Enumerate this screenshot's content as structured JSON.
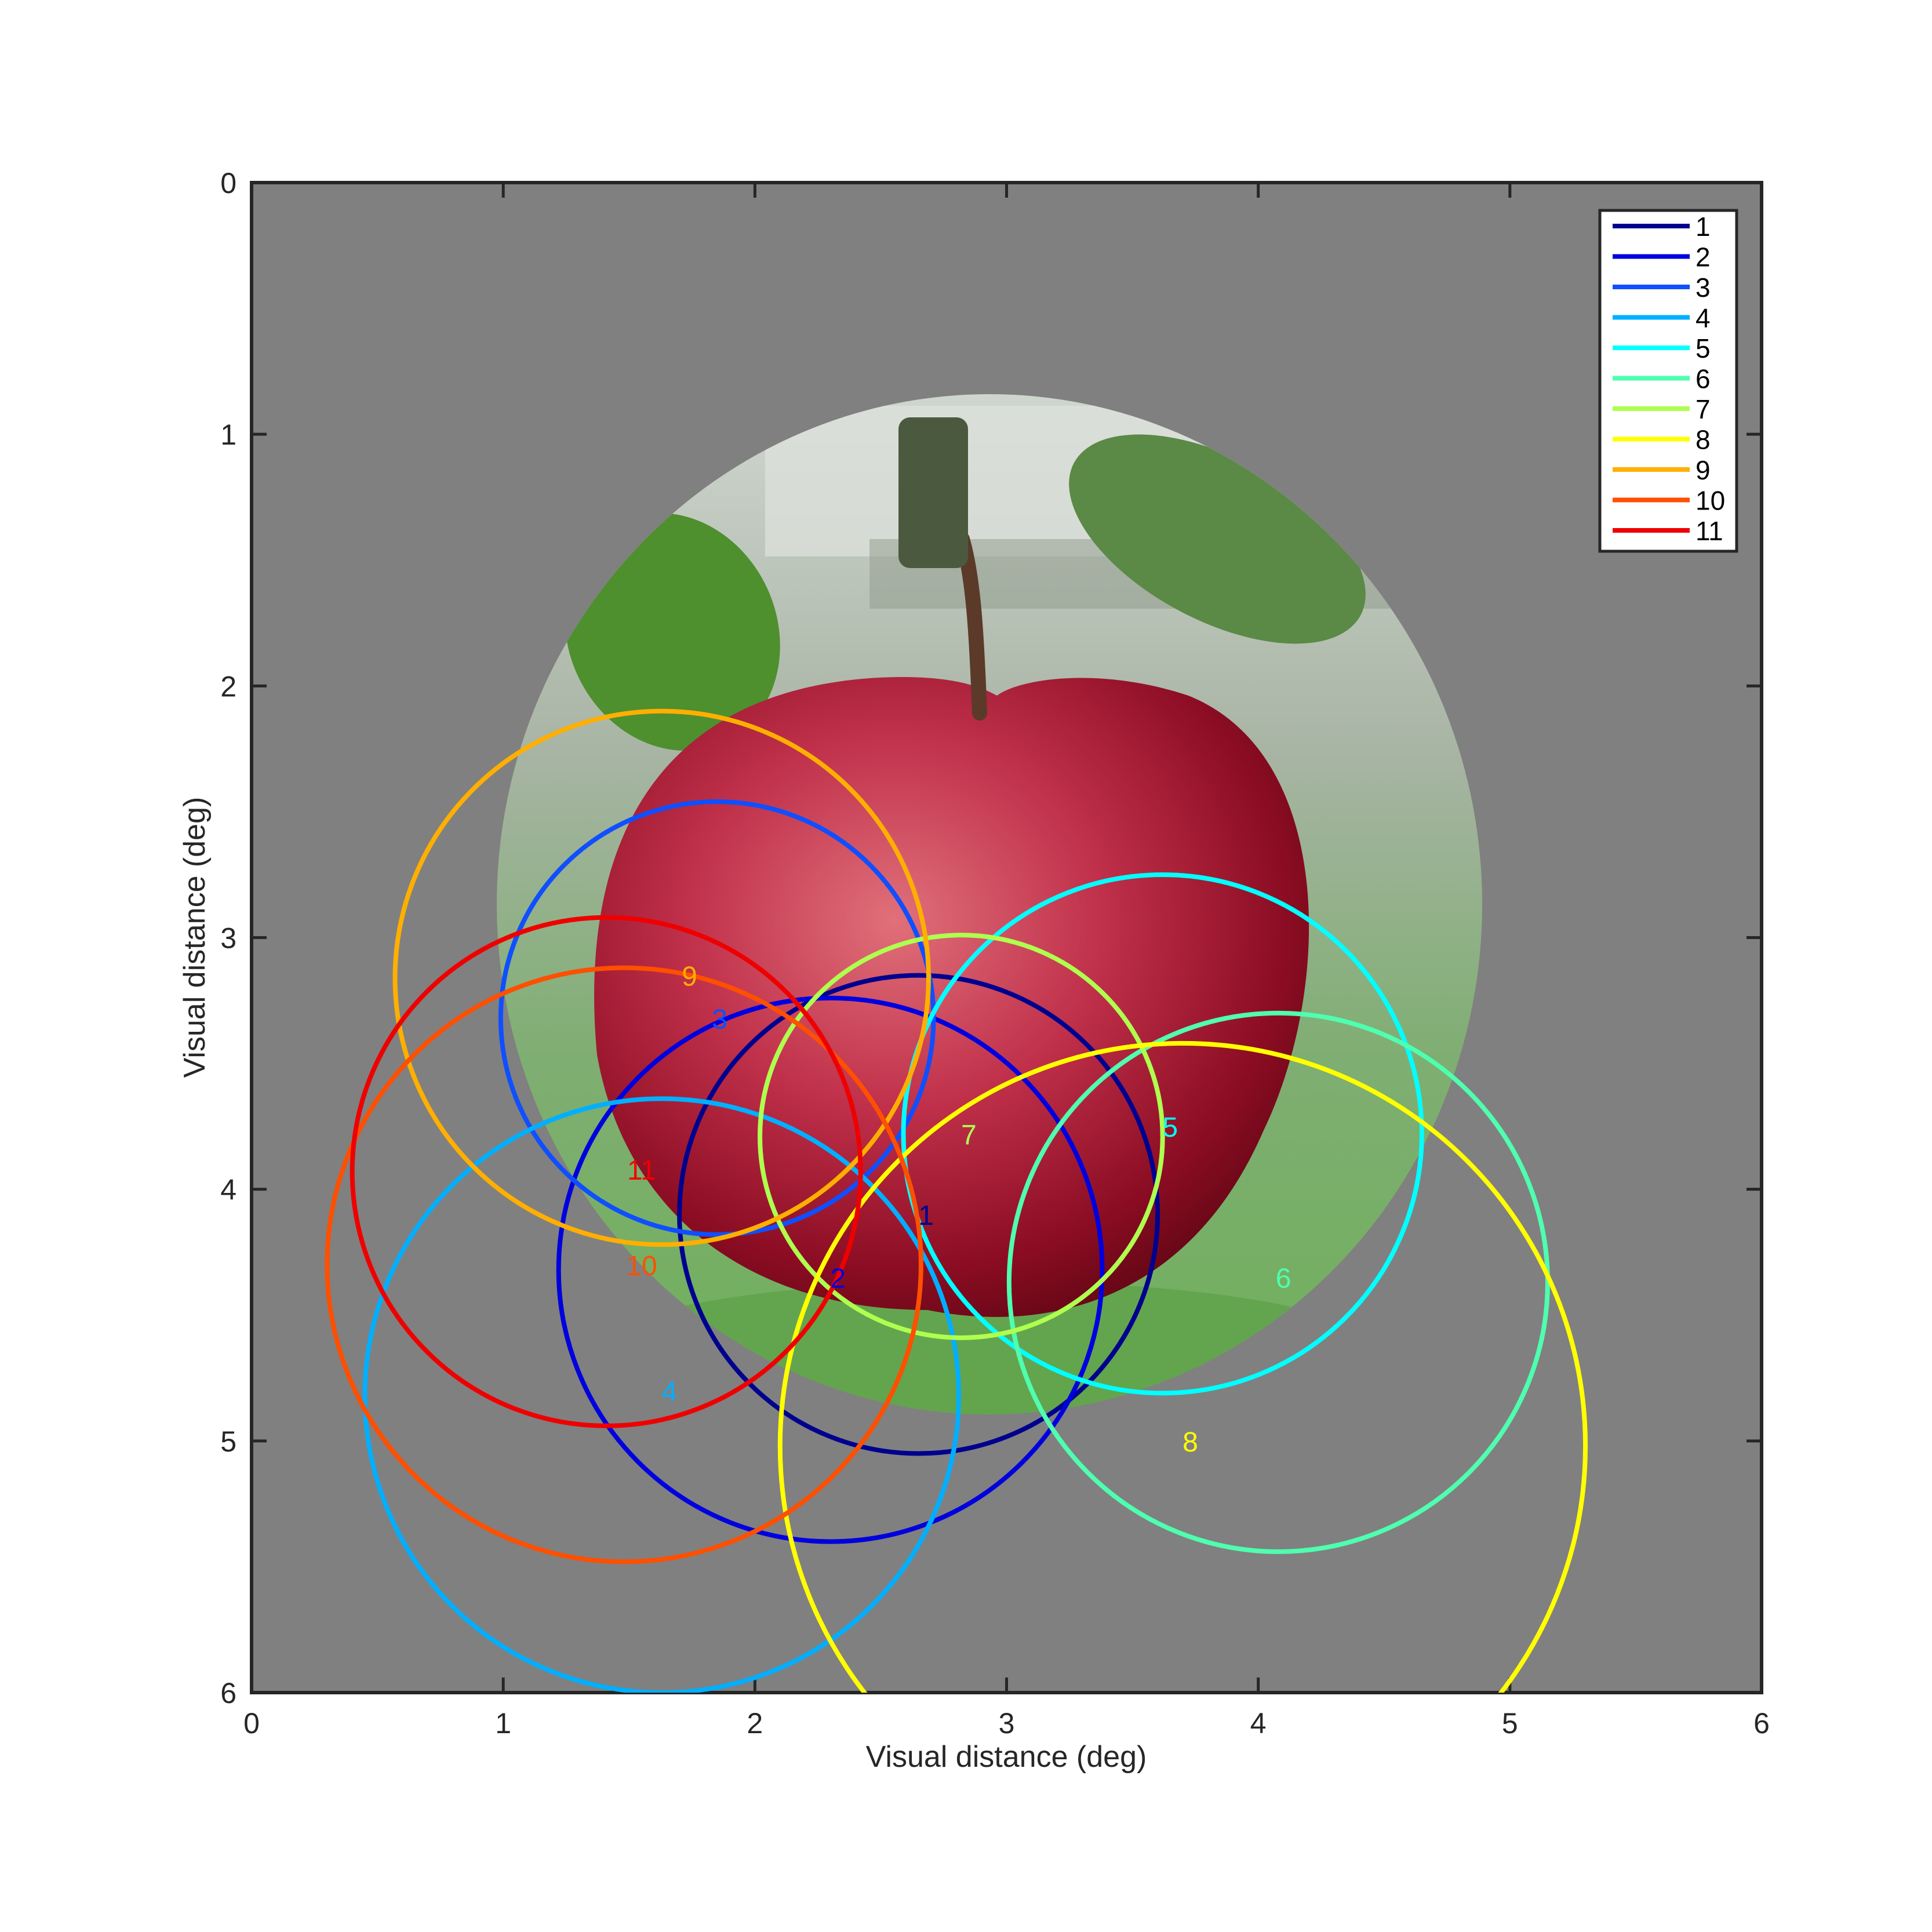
{
  "chart_data": {
    "type": "scatter",
    "title": "",
    "xlabel": "Visual distance (deg)",
    "ylabel": "Visual distance (deg)",
    "xlim": [
      0,
      6
    ],
    "ylim": [
      0,
      6
    ],
    "y_reversed": true,
    "x_ticks": [
      "0",
      "1",
      "2",
      "3",
      "4",
      "5",
      "6"
    ],
    "y_ticks": [
      "0",
      "1",
      "2",
      "3",
      "4",
      "5",
      "6"
    ],
    "grid": false,
    "legend_position": "top-right",
    "background_color": "#808080",
    "image": "apple-photo",
    "series": [
      {
        "name": "1",
        "label": "1",
        "color": "#00008f",
        "cx": 2.65,
        "cy": 4.1,
        "r": 0.95,
        "label_x": 2.68,
        "label_y": 4.1
      },
      {
        "name": "2",
        "label": "2",
        "color": "#0000df",
        "cx": 2.3,
        "cy": 4.32,
        "r": 1.08,
        "label_x": 2.33,
        "label_y": 4.35
      },
      {
        "name": "3",
        "label": "3",
        "color": "#0f4fff",
        "cx": 1.85,
        "cy": 3.32,
        "r": 0.86,
        "label_x": 1.86,
        "label_y": 3.32
      },
      {
        "name": "4",
        "label": "4",
        "color": "#00afff",
        "cx": 1.63,
        "cy": 4.82,
        "r": 1.18,
        "label_x": 1.66,
        "label_y": 4.8
      },
      {
        "name": "5",
        "label": "5",
        "color": "#00ffff",
        "cx": 3.62,
        "cy": 3.78,
        "r": 1.03,
        "label_x": 3.65,
        "label_y": 3.75
      },
      {
        "name": "6",
        "label": "6",
        "color": "#4fffaf",
        "cx": 4.08,
        "cy": 4.37,
        "r": 1.07,
        "label_x": 4.1,
        "label_y": 4.35
      },
      {
        "name": "7",
        "label": "7",
        "color": "#afff4f",
        "cx": 2.82,
        "cy": 3.79,
        "r": 0.8,
        "label_x": 2.85,
        "label_y": 3.78
      },
      {
        "name": "8",
        "label": "8",
        "color": "#ffff00",
        "cx": 3.7,
        "cy": 5.02,
        "r": 1.6,
        "label_x": 3.73,
        "label_y": 5.0
      },
      {
        "name": "9",
        "label": "9",
        "color": "#ffaf00",
        "cx": 1.63,
        "cy": 3.16,
        "r": 1.06,
        "label_x": 1.74,
        "label_y": 3.15
      },
      {
        "name": "10",
        "label": "10",
        "color": "#ff4f00",
        "cx": 1.48,
        "cy": 4.3,
        "r": 1.18,
        "label_x": 1.55,
        "label_y": 4.3
      },
      {
        "name": "11",
        "label": "11",
        "color": "#ef0000",
        "cx": 1.41,
        "cy": 3.93,
        "r": 1.01,
        "label_x": 1.55,
        "label_y": 3.92
      }
    ]
  }
}
